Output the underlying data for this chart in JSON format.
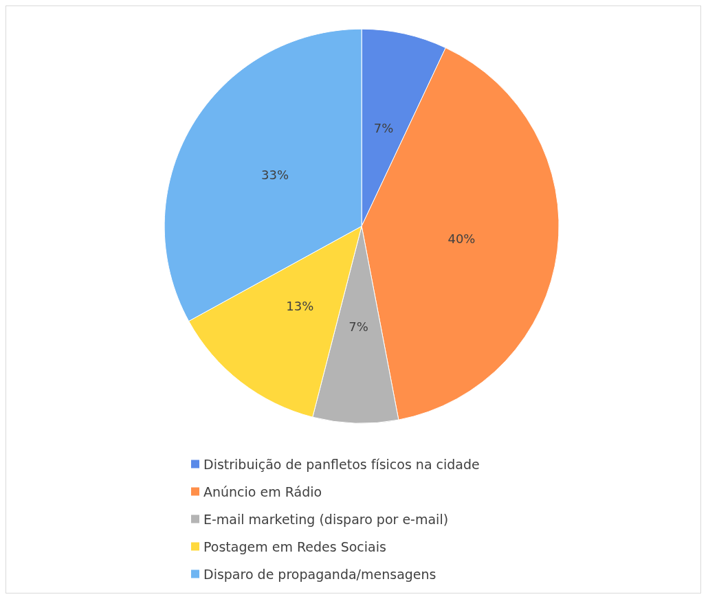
{
  "chart_data": {
    "type": "pie",
    "categories": [
      "Distribuição de panfletos físicos na cidade",
      "Anúncio em Rádio",
      "E-mail marketing (disparo por e-mail)",
      "Postagem em Redes Sociais",
      "Disparo de propaganda/mensagens"
    ],
    "values": [
      7,
      40,
      7,
      13,
      33
    ],
    "colors": [
      "#5a8ae8",
      "#ff8f4a",
      "#b4b4b4",
      "#ffd93d",
      "#6fb5f2"
    ],
    "value_labels": [
      "7%",
      "40%",
      "7%",
      "13%",
      "33%"
    ],
    "legend": "bottom"
  }
}
